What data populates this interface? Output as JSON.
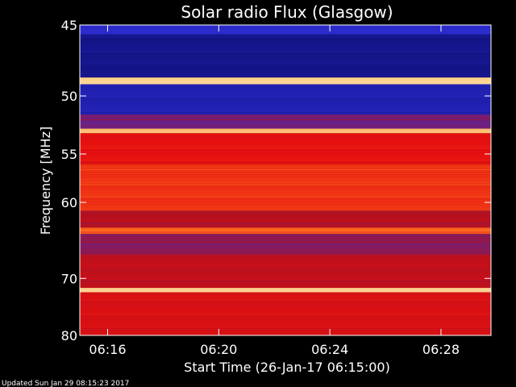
{
  "chart_data": {
    "type": "heatmap",
    "title": "Solar radio Flux (Glasgow)",
    "xlabel": "Start Time (26-Jan-17 06:15:00)",
    "ylabel": "Frequency [MHz]",
    "x_ticks": [
      "06:16",
      "06:20",
      "06:24",
      "06:28"
    ],
    "x_tick_minutes": [
      1,
      5,
      9,
      13
    ],
    "xlim_minutes": [
      0,
      14.8
    ],
    "y_ticks": [
      45,
      50,
      55,
      60,
      70,
      80
    ],
    "ylim_mhz": [
      45,
      80
    ],
    "y_scale": "reciprocal",
    "colormap": [
      "#0a0a5a",
      "#1a1aa0",
      "#3030d8",
      "#b01020",
      "#e81010",
      "#ff8020",
      "#ffe0a0"
    ],
    "bands_mhz": [
      {
        "from": 45.0,
        "to": 45.6,
        "level": 0.3
      },
      {
        "from": 45.6,
        "to": 48.6,
        "level": 0.12
      },
      {
        "from": 48.6,
        "to": 49.1,
        "level": 0.98
      },
      {
        "from": 49.1,
        "to": 51.5,
        "level": 0.22
      },
      {
        "from": 51.5,
        "to": 52.7,
        "level": 0.42
      },
      {
        "from": 52.7,
        "to": 53.1,
        "level": 0.95
      },
      {
        "from": 53.1,
        "to": 56.0,
        "level": 0.66
      },
      {
        "from": 56.0,
        "to": 61.0,
        "level": 0.72
      },
      {
        "from": 61.0,
        "to": 63.0,
        "level": 0.52
      },
      {
        "from": 63.0,
        "to": 63.8,
        "level": 0.78
      },
      {
        "from": 63.8,
        "to": 66.5,
        "level": 0.45
      },
      {
        "from": 66.5,
        "to": 71.5,
        "level": 0.55
      },
      {
        "from": 71.5,
        "to": 72.2,
        "level": 0.97
      },
      {
        "from": 72.2,
        "to": 80.0,
        "level": 0.62
      }
    ],
    "updated": "Updated Sun Jan 29 08:15:23 2017"
  }
}
